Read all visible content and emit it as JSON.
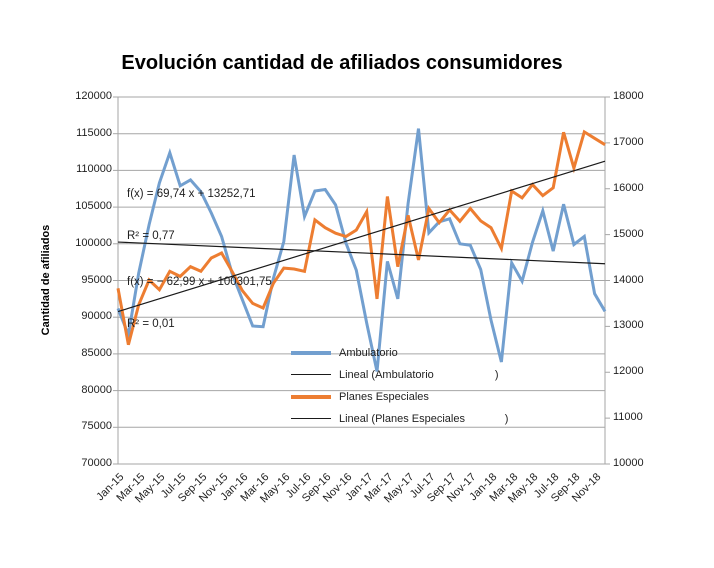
{
  "title": "Evolución cantidad de afiliados consumidores",
  "y_axis": {
    "title": "Cantidad de afiliados"
  },
  "left_axis_ticks": [
    "120000",
    "115000",
    "110000",
    "105000",
    "100000",
    "95000",
    "90000",
    "85000",
    "80000",
    "75000",
    "70000"
  ],
  "right_axis_ticks": [
    "18000",
    "17000",
    "16000",
    "15000",
    "14000",
    "13000",
    "12000",
    "11000",
    "10000"
  ],
  "equations": [
    {
      "formula": "f(x) = 69,74 x + 13252,71",
      "r2": "R² = 0,77"
    },
    {
      "formula": "f(x) = − 62,99 x + 100301,75",
      "r2": "R² = 0,01"
    }
  ],
  "legend": {
    "items": [
      {
        "label": "Ambulatorio",
        "line": "thick",
        "color": "#729FCF"
      },
      {
        "label": "Lineal (Ambulatorio                    )",
        "line": "thin",
        "color": "#1a1a1a"
      },
      {
        "label": "Planes Especiales",
        "line": "thick",
        "color": "#ED7D31"
      },
      {
        "label": "Lineal (Planes Especiales             )",
        "line": "thin",
        "color": "#1a1a1a"
      }
    ]
  },
  "colors": {
    "ambulatorio": "#729FCF",
    "planes_especiales": "#ED7D31",
    "trendline": "#1a1a1a",
    "gridline": "#A6A6A6",
    "axis_text": "#1f1f1f",
    "background": "#ffffff"
  },
  "chart_data": {
    "type": "line",
    "x": [
      "Jan-15",
      "Feb-15",
      "Mar-15",
      "Apr-15",
      "May-15",
      "Jun-15",
      "Jul-15",
      "Aug-15",
      "Sep-15",
      "Oct-15",
      "Nov-15",
      "Dec-15",
      "Jan-16",
      "Feb-16",
      "Mar-16",
      "Apr-16",
      "May-16",
      "Jun-16",
      "Jul-16",
      "Aug-16",
      "Sep-16",
      "Oct-16",
      "Nov-16",
      "Dec-16",
      "Jan-17",
      "Feb-17",
      "Mar-17",
      "Apr-17",
      "May-17",
      "Jun-17",
      "Jul-17",
      "Aug-17",
      "Sep-17",
      "Oct-17",
      "Nov-17",
      "Dec-17",
      "Jan-18",
      "Feb-18",
      "Mar-18",
      "Apr-18",
      "May-18",
      "Jun-18",
      "Jul-18",
      "Aug-18",
      "Sep-18",
      "Oct-18",
      "Nov-18",
      "Dec-18"
    ],
    "x_tick_every": 2,
    "left_axis": {
      "min": 70000,
      "max": 120000,
      "step": 5000
    },
    "right_axis": {
      "min": 10000,
      "max": 18000,
      "step": 1000
    },
    "series": [
      {
        "name": "Ambulatorio",
        "axis": "left",
        "color": "#729FCF",
        "values": [
          91200,
          87600,
          96000,
          102600,
          108300,
          112400,
          107900,
          108700,
          107100,
          104200,
          101000,
          96000,
          92400,
          88800,
          88700,
          95300,
          100300,
          112100,
          103700,
          107200,
          107400,
          105300,
          100100,
          96400,
          89200,
          82600,
          97600,
          92500,
          105500,
          115700,
          101500,
          103000,
          103400,
          100000,
          99800,
          96500,
          89600,
          83900,
          97400,
          94900,
          100200,
          104500,
          99000,
          105400,
          99900,
          101000,
          93200,
          90800
        ]
      },
      {
        "name": "Planes Especiales",
        "axis": "right",
        "color": "#ED7D31",
        "values": [
          13830,
          12600,
          13470,
          14010,
          13800,
          14200,
          14090,
          14300,
          14200,
          14490,
          14600,
          14200,
          13780,
          13500,
          13400,
          13940,
          14270,
          14250,
          14200,
          15320,
          15150,
          15030,
          14960,
          15100,
          15500,
          13600,
          15830,
          14300,
          15420,
          14450,
          15570,
          15260,
          15540,
          15290,
          15570,
          15300,
          15150,
          14700,
          15950,
          15800,
          16090,
          15850,
          16020,
          17230,
          16450,
          17240,
          17100,
          16960
        ]
      }
    ],
    "trendlines": [
      {
        "name": "Lineal (Ambulatorio)",
        "axis": "left",
        "slope": -62.99,
        "intercept": 100301.75,
        "r2": 0.01
      },
      {
        "name": "Lineal (Planes Especiales)",
        "axis": "right",
        "slope": 69.74,
        "intercept": 13252.71,
        "r2": 0.77
      }
    ]
  }
}
